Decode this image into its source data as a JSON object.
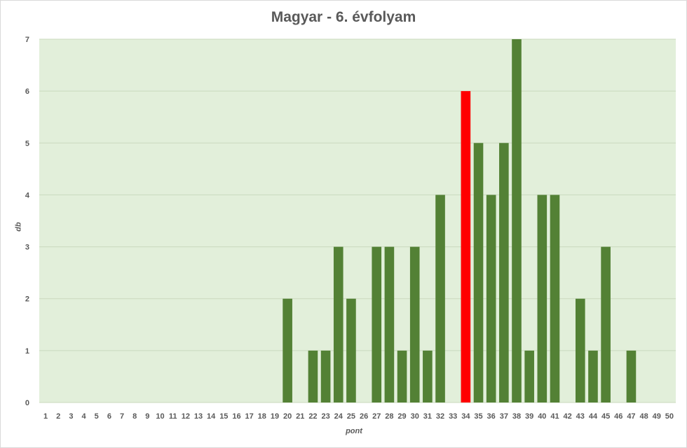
{
  "chart_data": {
    "type": "bar",
    "title": "Magyar - 6. évfolyam",
    "xlabel": "pont",
    "ylabel": "db",
    "ylim": [
      0,
      7
    ],
    "yticks": [
      0,
      1,
      2,
      3,
      4,
      5,
      6,
      7
    ],
    "grid": true,
    "categories": [
      "1",
      "2",
      "3",
      "4",
      "5",
      "6",
      "7",
      "8",
      "9",
      "10",
      "11",
      "12",
      "13",
      "14",
      "15",
      "16",
      "17",
      "18",
      "19",
      "20",
      "21",
      "22",
      "23",
      "24",
      "25",
      "26",
      "27",
      "28",
      "29",
      "30",
      "31",
      "32",
      "33",
      "34",
      "35",
      "36",
      "37",
      "38",
      "39",
      "40",
      "41",
      "42",
      "43",
      "44",
      "45",
      "46",
      "47",
      "48",
      "49",
      "50"
    ],
    "values": [
      0,
      0,
      0,
      0,
      0,
      0,
      0,
      0,
      0,
      0,
      0,
      0,
      0,
      0,
      0,
      0,
      0,
      0,
      0,
      2,
      0,
      1,
      1,
      3,
      2,
      0,
      3,
      3,
      1,
      3,
      1,
      4,
      0,
      6,
      5,
      4,
      5,
      7,
      1,
      4,
      4,
      0,
      2,
      1,
      3,
      0,
      1,
      0,
      0,
      0
    ],
    "highlight_category": "34",
    "colors": {
      "bar": "#538135",
      "highlight": "#ff0000",
      "plot_background": "#e2efda",
      "gridline": "#c9d9be",
      "text": "#595959"
    }
  }
}
